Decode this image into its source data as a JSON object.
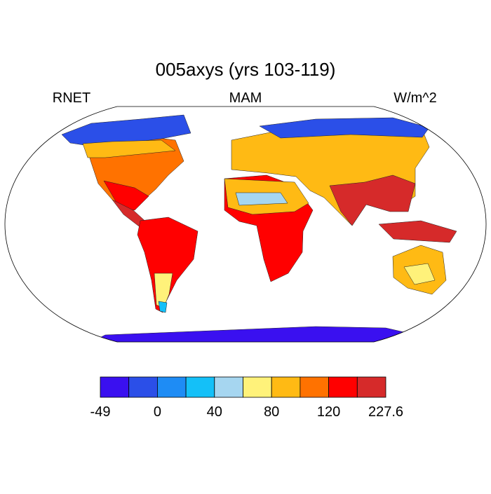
{
  "title": "005axys (yrs 103-119)",
  "left_string": "RNET",
  "center_string": "MAM",
  "right_string": "W/m^2",
  "colorbar": {
    "colors": [
      "#3a10f0",
      "#2b4fe8",
      "#1e8cf5",
      "#14c0f8",
      "#a6d6f0",
      "#fff27a",
      "#ffba14",
      "#ff7200",
      "#ff0000",
      "#d62a2a"
    ],
    "labels": [
      -49,
      0,
      40,
      80,
      120,
      227.6
    ]
  }
}
